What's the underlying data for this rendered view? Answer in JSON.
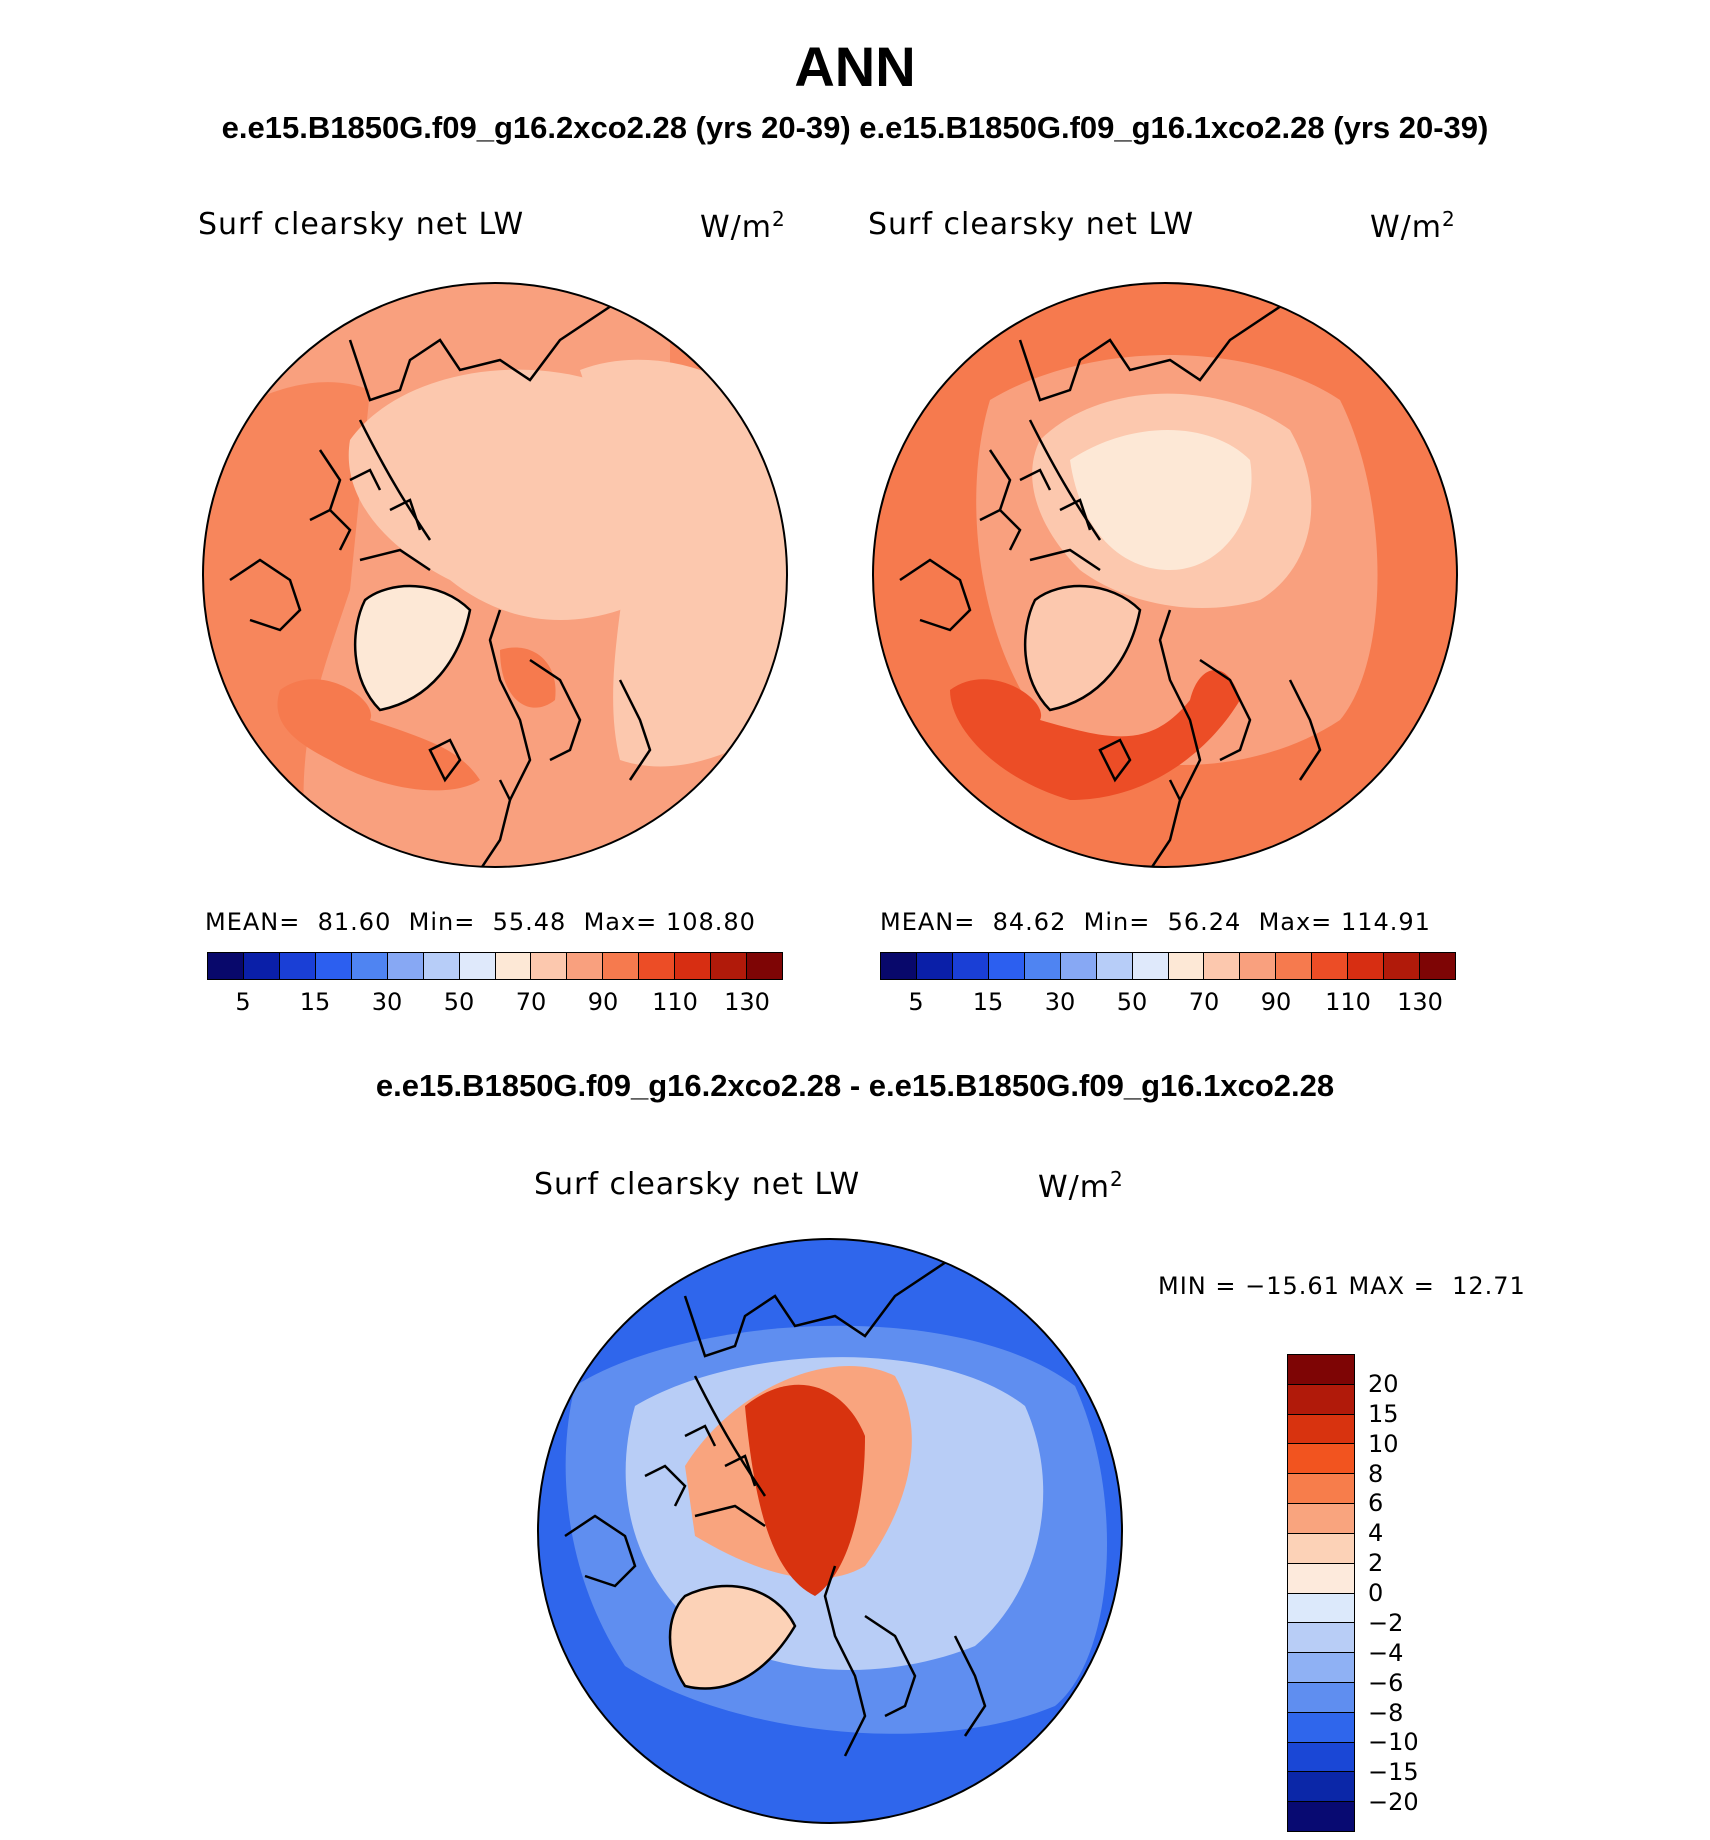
{
  "header": {
    "title": "ANN",
    "subtitle": "e.e15.B1850G.f09_g16.2xco2.28 (yrs 20-39) e.e15.B1850G.f09_g16.1xco2.28 (yrs 20-39)"
  },
  "panels": [
    {
      "variable": "Surf clearsky net LW",
      "units": "W/m",
      "units_exp": "2",
      "mean_label": "MEAN=",
      "mean": "81.60",
      "min_label": "Min=",
      "min": "55.48",
      "max_label": "Max=",
      "max": "108.80"
    },
    {
      "variable": "Surf clearsky net LW",
      "units": "W/m",
      "units_exp": "2",
      "mean_label": "MEAN=",
      "mean": "84.62",
      "min_label": "Min=",
      "min": "56.24",
      "max_label": "Max=",
      "max": "114.91"
    }
  ],
  "colorbar_top": {
    "colors": [
      "#08086b",
      "#0a1fa8",
      "#1a3fd6",
      "#2c5ff0",
      "#4f84f2",
      "#87a8f4",
      "#b7cdf8",
      "#dfe9fb",
      "#fde8d6",
      "#fcc8ae",
      "#f9a07e",
      "#f67a4e",
      "#ec4d26",
      "#d72e12",
      "#b11a0a",
      "#7e0505"
    ],
    "ticks": [
      "5",
      "15",
      "30",
      "50",
      "70",
      "90",
      "110",
      "130"
    ]
  },
  "diff": {
    "title": "e.e15.B1850G.f09_g16.2xco2.28 - e.e15.B1850G.f09_g16.1xco2.28",
    "variable": "Surf clearsky net LW",
    "units": "W/m",
    "units_exp": "2",
    "minmax": "MIN = −15.61 MAX =  12.71",
    "colors": [
      "#7e0505",
      "#b11a0a",
      "#d8330f",
      "#f2541f",
      "#f77d4b",
      "#f9a47e",
      "#fcd2b7",
      "#fdeadc",
      "#dce9fb",
      "#b8cdf6",
      "#8fb1f4",
      "#5f8ef0",
      "#2f66ec",
      "#1a47d6",
      "#0b27a8",
      "#080a72"
    ],
    "ticks": [
      "20",
      "15",
      "10",
      "8",
      "6",
      "4",
      "2",
      "0",
      "−2",
      "−4",
      "−6",
      "−8",
      "−10",
      "−15",
      "−20"
    ]
  }
}
